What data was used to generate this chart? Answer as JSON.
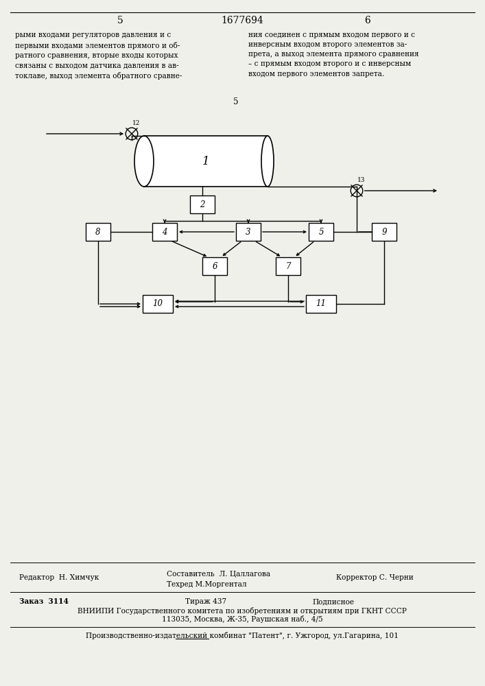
{
  "bg_color": "#f0f0eb",
  "page_num_left": "5",
  "page_num_center": "1677694",
  "page_num_right": "6",
  "left_col_text": "рыми входами регуляторов давления и с\nпервыми входами элементов прямого и об-\nратного сравнения, вторые входы которых\nсвязаны с выходом датчика давления в ав-\nтоклаве, выход элемента обратного сравне-",
  "right_col_text": "ния соединен с прямым входом первого и с\nинверсным входом второго элементов за-\nпрета, а выход элемента прямого сравнения\n– с прямым входом второго и с инверсным\nвходом первого элементов запрета.",
  "line5_label": "5",
  "editor_label": "Редактор  Н. Химчук",
  "compiler_label": "Составитель  Л. Цаллагова\nТехред М.Моргентал",
  "corrector_label": "Корректор С. Черни",
  "order_label": "Заказ  3114",
  "tirage_label": "Тираж 437",
  "subscription_label": "Подписное",
  "vniiipi1": "ВНИИПИ Государственного комитета по изобретениям и открытиям при ГКНТ СССР",
  "vniiipi2": "113035, Москва, Ж-35, Раушская наб., 4/5",
  "production": "Производственно-издательский комбинат \"Патент\", г. Ужгород, ул.Гагарина, 101"
}
